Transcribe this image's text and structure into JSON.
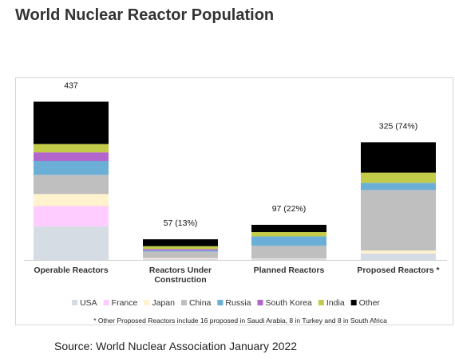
{
  "page": {
    "title": "World Nuclear Reactor Population",
    "source": "Source: World Nuclear Association January 2022"
  },
  "chart_data": {
    "type": "bar",
    "stacked": true,
    "title": "World Nuclear Reactor Population",
    "categories": [
      [
        "Operable Reactors"
      ],
      [
        "Reactors Under",
        "Construction"
      ],
      [
        "Planned Reactors"
      ],
      [
        "Proposed Reactors *"
      ]
    ],
    "bar_labels": [
      "437",
      "57 (13%)",
      "97 (22%)",
      "325 (74%)"
    ],
    "totals": [
      437,
      57,
      97,
      325
    ],
    "series": [
      {
        "name": "USA",
        "color": "#d6dce4",
        "values": [
          93,
          2,
          3,
          18
        ]
      },
      {
        "name": "France",
        "color": "#ffccff",
        "values": [
          56,
          1,
          0,
          0
        ]
      },
      {
        "name": "Japan",
        "color": "#fff2cc",
        "values": [
          33,
          2,
          1,
          8
        ]
      },
      {
        "name": "China",
        "color": "#bfbfbf",
        "values": [
          53,
          18,
          35,
          167
        ]
      },
      {
        "name": "Russia",
        "color": "#6baed6",
        "values": [
          38,
          3,
          26,
          20
        ]
      },
      {
        "name": "South Korea",
        "color": "#b266cc",
        "values": [
          24,
          4,
          0,
          0
        ]
      },
      {
        "name": "India",
        "color": "#c2cc48",
        "values": [
          23,
          8,
          12,
          28
        ]
      },
      {
        "name": "Other",
        "color": "#000000",
        "values": [
          117,
          19,
          20,
          84
        ]
      }
    ],
    "ylim": [
      0,
      480
    ],
    "grid": false,
    "legend_position": "bottom",
    "footnote": "* Other Proposed Reactors include 16 proposed in Saudi Arabia, 8 in Turkey and 8 in South Africa"
  }
}
